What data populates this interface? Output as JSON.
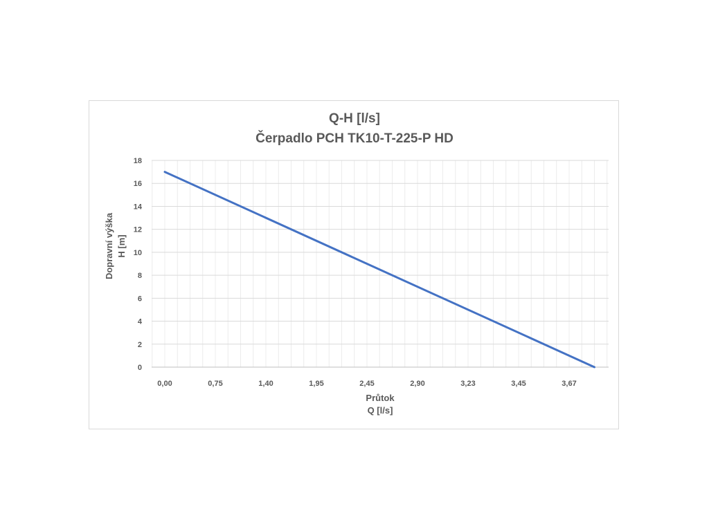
{
  "chart_data": {
    "type": "line",
    "title": [
      "Q-H  [l/s]",
      "Čerpadlo PCH TK10-T-225-P HD"
    ],
    "xlabel": [
      "Průtok",
      "Q [l/s]"
    ],
    "ylabel": [
      "Dopravní výška",
      "H [m]"
    ],
    "x_tick_labels": [
      "0,00",
      "0,75",
      "1,40",
      "1,95",
      "2,45",
      "2,90",
      "3,23",
      "3,45",
      "3,67"
    ],
    "y_ticks": [
      0,
      2,
      4,
      6,
      8,
      10,
      12,
      14,
      16,
      18
    ],
    "ylim": [
      0,
      18
    ],
    "grid": true,
    "series": [
      {
        "name": "",
        "color": "#4472C4",
        "points": [
          {
            "x_index": 0,
            "y": 17
          },
          {
            "x_index": 8.5,
            "y": 0
          }
        ]
      }
    ]
  }
}
